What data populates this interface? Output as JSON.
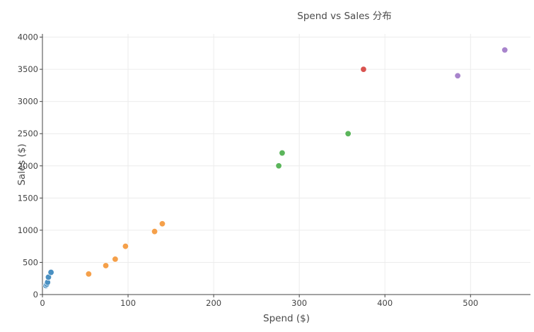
{
  "chart_data": {
    "type": "scatter",
    "title": "Spend vs Sales 分布",
    "xlabel": "Spend ($)",
    "ylabel": "Sales ($)",
    "xlim": [
      0,
      570
    ],
    "ylim": [
      0,
      4050
    ],
    "x_ticks": [
      0,
      100,
      200,
      300,
      400,
      500
    ],
    "y_ticks": [
      0,
      500,
      1000,
      1500,
      2000,
      2500,
      3000,
      3500,
      4000
    ],
    "grid": true,
    "legend": "none",
    "series": [
      {
        "color": "#4a90c2",
        "points": [
          [
            4,
            140
          ],
          [
            5,
            160
          ],
          [
            6,
            190
          ],
          [
            7,
            270
          ],
          [
            10,
            345
          ]
        ]
      },
      {
        "color": "#f5a04a",
        "points": [
          [
            54,
            320
          ],
          [
            74,
            450
          ],
          [
            85,
            550
          ],
          [
            97,
            750
          ],
          [
            131,
            980
          ],
          [
            140,
            1100
          ]
        ]
      },
      {
        "color": "#5bb55b",
        "points": [
          [
            276,
            2000
          ],
          [
            280,
            2200
          ],
          [
            357,
            2500
          ]
        ]
      },
      {
        "color": "#d9534f",
        "points": [
          [
            375,
            3500
          ]
        ]
      },
      {
        "color": "#a884cc",
        "points": [
          [
            485,
            3400
          ],
          [
            540,
            3800
          ]
        ]
      }
    ]
  }
}
